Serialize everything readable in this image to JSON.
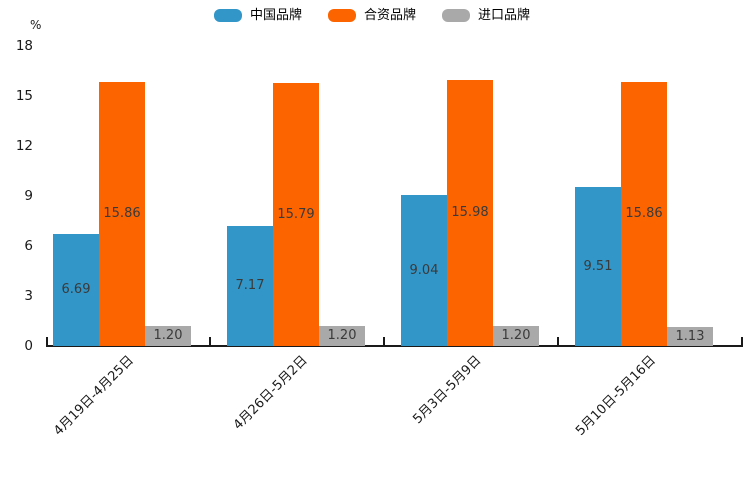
{
  "chart_data": {
    "type": "bar",
    "title": "",
    "unit_label": "%",
    "categories": [
      "4月19日-4月25日",
      "4月26日-5月2日",
      "5月3日-5月9日",
      "5月10日-5月16日"
    ],
    "series": [
      {
        "key": "china-brands",
        "name": "中国品牌",
        "color": "#3296C8",
        "values": [
          6.69,
          7.17,
          9.04,
          9.51
        ],
        "labels": [
          "6.69",
          "7.17",
          "9.04",
          "9.51"
        ]
      },
      {
        "key": "joint-venture-brands",
        "name": "合资品牌",
        "color": "#FC6400",
        "values": [
          15.86,
          15.79,
          15.98,
          15.86
        ],
        "labels": [
          "15.86",
          "15.79",
          "15.98",
          "15.86"
        ]
      },
      {
        "key": "imported-brands",
        "name": "进口品牌",
        "color": "#A9A9A9",
        "values": [
          1.2,
          1.2,
          1.2,
          1.13
        ],
        "labels": [
          "1.20",
          "1.20",
          "1.20",
          "1.13"
        ]
      }
    ],
    "ylim": [
      0,
      18
    ],
    "yticks": [
      0,
      3,
      6,
      9,
      12,
      15,
      18
    ],
    "grid": false,
    "legend_position": "top-center",
    "bar_label_color": "#3a3a3a",
    "axis_color": "#1a1a1a"
  }
}
